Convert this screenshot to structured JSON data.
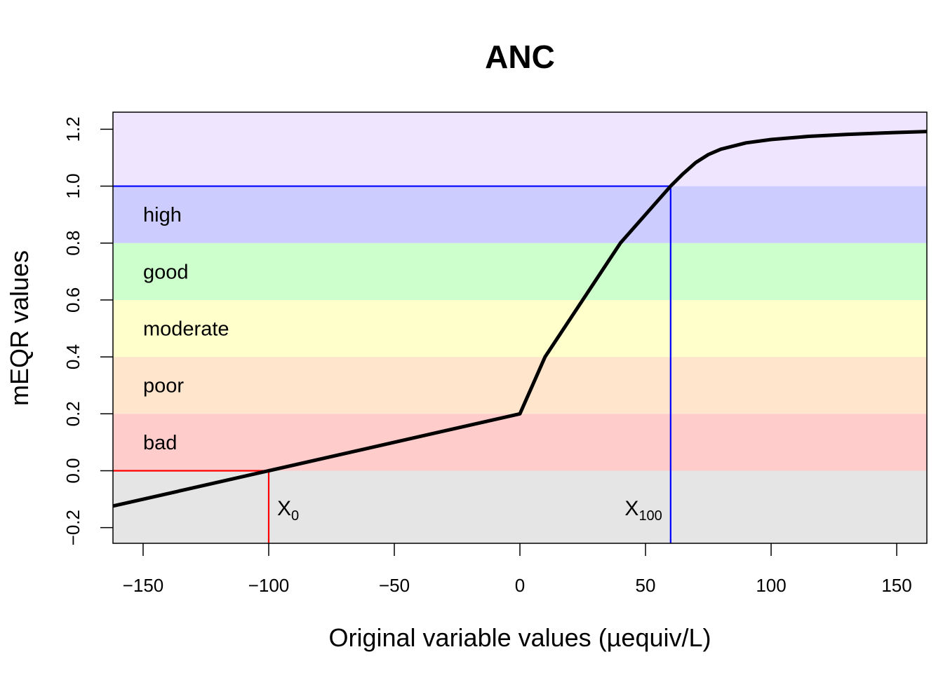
{
  "chart_data": {
    "type": "line",
    "title": "ANC",
    "xlabel": "Original variable values (µequiv/L)",
    "ylabel": "mEQR values",
    "xlim": [
      -162,
      162
    ],
    "ylim": [
      -0.255,
      1.26
    ],
    "x_ticks": [
      -150,
      -100,
      -50,
      0,
      50,
      100,
      150
    ],
    "x_tick_labels": [
      "−150",
      "−100",
      "−50",
      "0",
      "50",
      "100",
      "150"
    ],
    "y_ticks": [
      -0.2,
      0.0,
      0.2,
      0.4,
      0.6,
      0.8,
      1.0,
      1.2
    ],
    "y_tick_labels": [
      "−0.2",
      "0.0",
      "0.2",
      "0.4",
      "0.6",
      "0.8",
      "1.0",
      "1.2"
    ],
    "bands": [
      {
        "label": "",
        "from": -0.255,
        "to": 0.0,
        "color": "#e5e5e5"
      },
      {
        "label": "bad",
        "from": 0.0,
        "to": 0.2,
        "color": "#ffcccc"
      },
      {
        "label": "poor",
        "from": 0.2,
        "to": 0.4,
        "color": "#ffe5cc"
      },
      {
        "label": "moderate",
        "from": 0.4,
        "to": 0.6,
        "color": "#ffffcc"
      },
      {
        "label": "good",
        "from": 0.6,
        "to": 0.8,
        "color": "#ccffcc"
      },
      {
        "label": "high",
        "from": 0.8,
        "to": 1.0,
        "color": "#ccccff"
      },
      {
        "label": "",
        "from": 1.0,
        "to": 1.26,
        "color": "#f0e5ff"
      }
    ],
    "series": [
      {
        "color": "#000000",
        "x": [
          -162,
          -100,
          0,
          10,
          40,
          60,
          65,
          70,
          75,
          80,
          90,
          100,
          115,
          130,
          145,
          162
        ],
        "y": [
          -0.124,
          0.0,
          0.2,
          0.4,
          0.8,
          1.0,
          1.044,
          1.083,
          1.111,
          1.13,
          1.152,
          1.164,
          1.175,
          1.182,
          1.187,
          1.192
        ]
      }
    ],
    "markers": [
      {
        "name": "X",
        "sub": "0",
        "x": 0,
        "value": -100,
        "y": 0.0,
        "color": "#ff0000"
      },
      {
        "name": "X",
        "sub": "100",
        "value": 60,
        "y": 1.0,
        "color": "#0000ff"
      }
    ]
  }
}
